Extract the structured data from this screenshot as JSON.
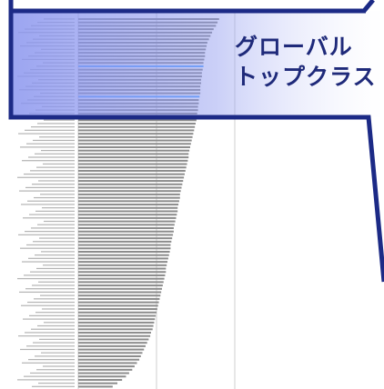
{
  "callout": {
    "title_line1": "グローバル",
    "title_line2": "トップクラス",
    "highlight_fill": "#8a95ee",
    "border_color": "#1c2a86"
  },
  "colors": {
    "bar_default": "#8c8c8c",
    "bar_highlight": "#5aa6ff",
    "grid": "#cfcfcf",
    "label": "#777777"
  },
  "chart_data": {
    "type": "bar",
    "orientation": "horizontal",
    "grid": true,
    "highlighted_indices": [
      14,
      23
    ],
    "values": [
      180,
      178,
      176,
      173,
      171,
      169,
      167,
      165,
      164,
      163,
      162,
      162,
      161,
      160,
      160,
      159,
      158,
      158,
      157,
      157,
      156,
      156,
      156,
      155,
      154,
      154,
      153,
      153,
      152,
      152,
      151,
      150,
      149,
      148,
      147,
      146,
      145,
      144,
      143,
      142,
      141,
      141,
      140,
      139,
      138,
      137,
      136,
      135,
      134,
      133,
      132,
      131,
      130,
      130,
      129,
      128,
      127,
      127,
      126,
      125,
      124,
      123,
      122,
      122,
      121,
      120,
      119,
      118,
      118,
      117,
      116,
      115,
      114,
      113,
      112,
      112,
      111,
      110,
      109,
      108,
      107,
      106,
      105,
      104,
      103,
      102,
      101,
      100,
      99,
      98,
      97,
      96,
      95,
      93,
      92,
      90,
      88,
      86,
      84,
      82,
      80,
      78,
      75,
      72,
      69,
      65,
      61,
      56,
      50,
      44
    ]
  }
}
